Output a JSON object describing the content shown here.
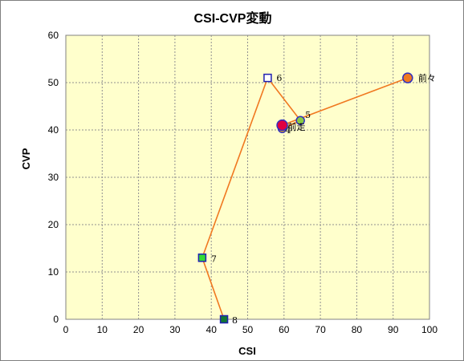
{
  "chart_data": {
    "type": "scatter",
    "title": "CSI-CVP変動",
    "xlabel": "CSI",
    "ylabel": "CVP",
    "xlim": [
      0,
      100
    ],
    "ylim": [
      0,
      60
    ],
    "x_ticks": [
      "0",
      "10",
      "20",
      "30",
      "40",
      "50",
      "60",
      "70",
      "80",
      "90",
      "100"
    ],
    "y_ticks": [
      "0",
      "10",
      "20",
      "30",
      "40",
      "50",
      "60"
    ],
    "grid": true,
    "plot_background": "#ffffcc",
    "line_color": "#f07820",
    "points": [
      {
        "label": "前々",
        "x": 94,
        "y": 51,
        "shape": "circle",
        "fill": "#f07820",
        "stroke": "#3030c0"
      },
      {
        "label": "前走",
        "x": 59.5,
        "y": 41,
        "shape": "circle",
        "fill": "#e00040",
        "stroke": "#3030c0"
      },
      {
        "label": "4",
        "x": 59.5,
        "y": 40.3,
        "shape": "circle",
        "fill": "#ffc000",
        "stroke": "#3030c0"
      },
      {
        "label": "5",
        "x": 64.5,
        "y": 42,
        "shape": "circle",
        "fill": "#88cc44",
        "stroke": "#3030c0"
      },
      {
        "label": "6",
        "x": 55.5,
        "y": 51,
        "shape": "square",
        "fill": "#ffffff",
        "stroke": "#2020b0"
      },
      {
        "label": "7",
        "x": 37.5,
        "y": 13,
        "shape": "square",
        "fill": "#33dd33",
        "stroke": "#2020b0"
      },
      {
        "label": "8",
        "x": 43.5,
        "y": 0,
        "shape": "square",
        "fill": "#117733",
        "stroke": "#2020b0"
      }
    ],
    "path": [
      "前々",
      "前走",
      "4",
      "5",
      "6",
      "7",
      "8"
    ]
  }
}
